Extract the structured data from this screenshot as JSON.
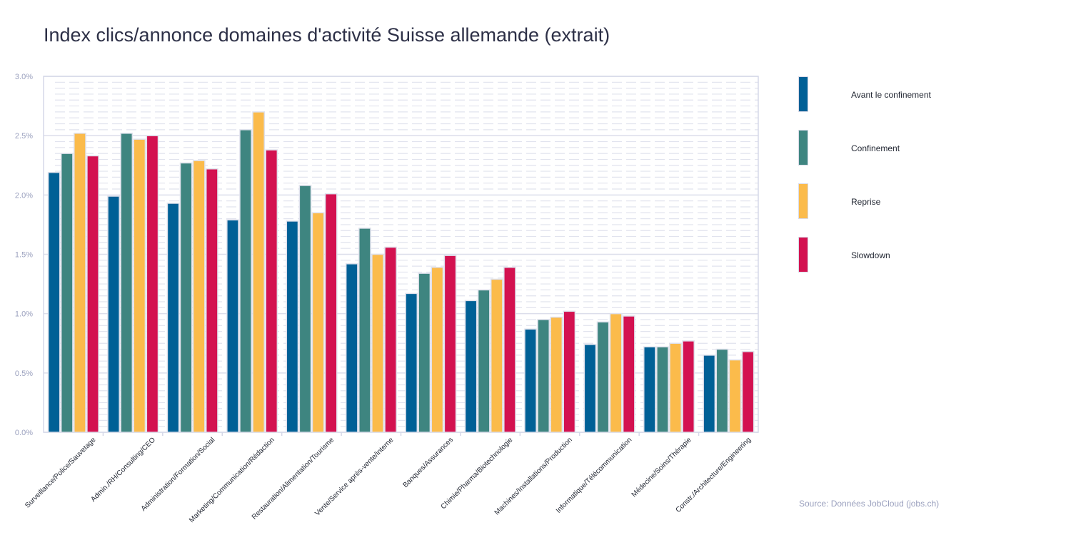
{
  "chart_data": {
    "type": "bar",
    "title": "Index clics/annonce domaines d'activité Suisse allemande (extrait)",
    "xlabel": "",
    "ylabel": "",
    "ylim": [
      0,
      3.0
    ],
    "y_ticks": [
      "0.0%",
      "0.5%",
      "1.0%",
      "1.5%",
      "2.0%",
      "2.5%",
      "3.0%"
    ],
    "y_tick_values": [
      0,
      0.5,
      1.0,
      1.5,
      2.0,
      2.5,
      3.0
    ],
    "grid": true,
    "legend_position": "right",
    "categories": [
      "Surveillance/Police/Sauvetage",
      "Admin./RH/Consulting/CEO",
      "Administration/Formation/Social",
      "Marketing/Communication/Rédaction",
      "Restauration/Alimentation/Tourisme",
      "Vente/Service après-vente/interne",
      "Banques/Assurances",
      "Chimie/Pharma/Biotechnologie",
      "Machines/Installations/Production",
      "Informatique/Télécommunication",
      "Médecine/Soins/Thérapie",
      "Constr./Architecture/Engineering"
    ],
    "series": [
      {
        "name": "Avant le confinement",
        "color": "#006096",
        "values": [
          2.19,
          1.99,
          1.93,
          1.79,
          1.78,
          1.42,
          1.17,
          1.11,
          0.87,
          0.74,
          0.72,
          0.65
        ]
      },
      {
        "name": "Confinement",
        "color": "#3e8580",
        "values": [
          2.35,
          2.52,
          2.27,
          2.55,
          2.08,
          1.72,
          1.34,
          1.2,
          0.95,
          0.93,
          0.72,
          0.7
        ]
      },
      {
        "name": "Reprise",
        "color": "#fbbb4b",
        "values": [
          2.52,
          2.47,
          2.29,
          2.7,
          1.85,
          1.5,
          1.39,
          1.29,
          0.97,
          1.0,
          0.75,
          0.61
        ]
      },
      {
        "name": "Slowdown",
        "color": "#d31150",
        "values": [
          2.33,
          2.5,
          2.22,
          2.38,
          2.01,
          1.56,
          1.49,
          1.39,
          1.02,
          0.98,
          0.77,
          0.68
        ]
      }
    ],
    "source": "Source: Données JobCloud (jobs.ch)"
  }
}
